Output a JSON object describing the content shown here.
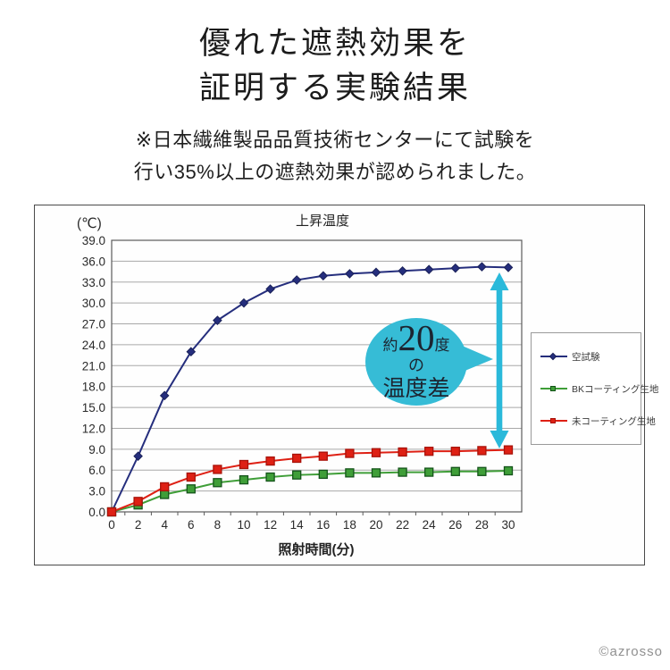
{
  "page": {
    "title_line1": "優れた遮熱効果を",
    "title_line2": "証明する実験結果",
    "subtitle_line1": "※日本繊維製品品質技術センターにて試験を",
    "subtitle_line2": "行い35%以上の遮熱効果が認められました。",
    "copyright": "©azrosso"
  },
  "annotation": {
    "prefix": "約",
    "big": "20",
    "suffix": "度",
    "middle": "の",
    "bottom": "温度差",
    "bubble_color": "#36bcd6",
    "arrow_color": "#2ab9da",
    "text_color": "#1c2531"
  },
  "chart_data": {
    "type": "line",
    "title": "上昇温度",
    "y_unit_label": "(℃)",
    "xlabel": "照射時間(分)",
    "x": [
      0,
      2,
      4,
      6,
      8,
      10,
      12,
      14,
      16,
      18,
      20,
      22,
      24,
      26,
      28,
      30
    ],
    "ylim": [
      0,
      39
    ],
    "ytick_step": 3,
    "grid": true,
    "legend_position": "right",
    "colors": {
      "gridline": "#a8a8a8",
      "plot_border": "#5a5a5a",
      "axis_text": "#2a2a2a"
    },
    "series": [
      {
        "name": "空試験",
        "color": "#252e7d",
        "marker": "diamond",
        "marker_stroke": "#1a2158",
        "values": [
          0.0,
          8.0,
          16.7,
          23.0,
          27.5,
          30.0,
          32.0,
          33.3,
          33.9,
          34.2,
          34.4,
          34.6,
          34.8,
          35.0,
          35.2,
          35.1
        ]
      },
      {
        "name": "BKコーティング生地",
        "color": "#3f9e38",
        "marker": "square",
        "marker_stroke": "#14541a",
        "values": [
          0.0,
          1.0,
          2.5,
          3.3,
          4.2,
          4.6,
          5.0,
          5.3,
          5.4,
          5.6,
          5.6,
          5.7,
          5.7,
          5.8,
          5.8,
          5.9
        ]
      },
      {
        "name": "未コーティング生地",
        "color": "#de2014",
        "marker": "square",
        "marker_stroke": "#a81209",
        "values": [
          0.0,
          1.5,
          3.6,
          5.0,
          6.1,
          6.8,
          7.3,
          7.7,
          8.0,
          8.4,
          8.5,
          8.6,
          8.7,
          8.7,
          8.8,
          8.9
        ]
      }
    ]
  }
}
